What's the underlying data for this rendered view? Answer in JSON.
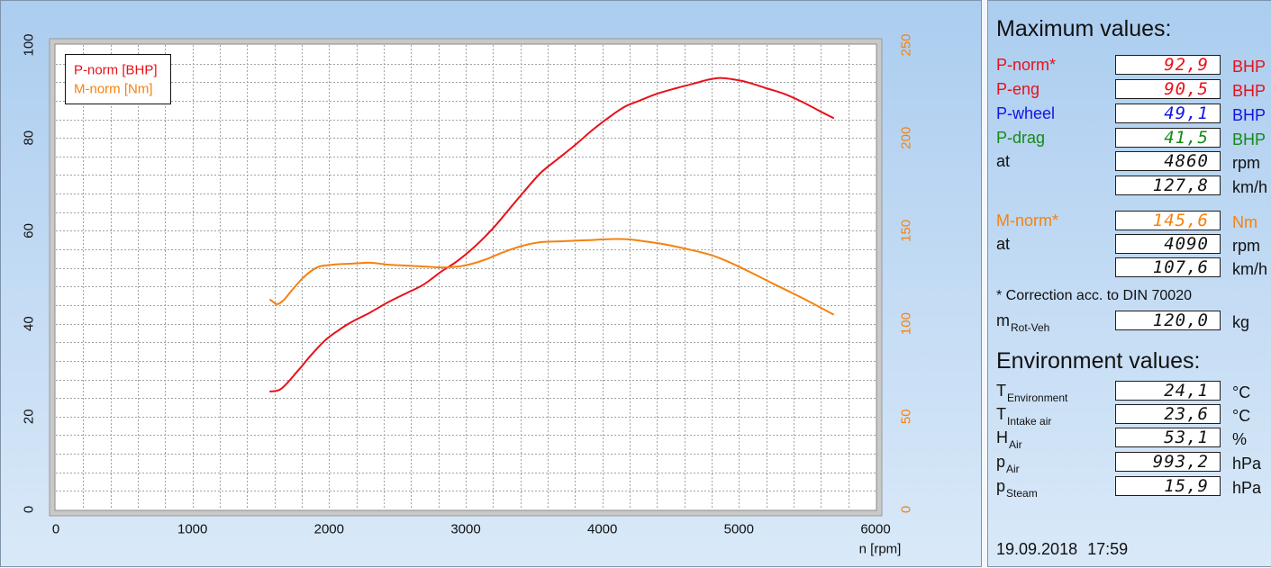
{
  "chart_data": {
    "type": "line",
    "x_axis": {
      "label": "n [rpm]",
      "lim": [
        0,
        6000
      ],
      "ticks": [
        0,
        1000,
        2000,
        3000,
        4000,
        5000,
        6000
      ]
    },
    "y_axis_left": {
      "lim": [
        0,
        100
      ],
      "ticks": [
        0,
        20,
        40,
        60,
        80,
        100
      ]
    },
    "y_axis_right": {
      "lim": [
        0,
        250
      ],
      "ticks": [
        0,
        50,
        100,
        150,
        200,
        250
      ],
      "color": "#f5820f"
    },
    "grid": true,
    "legend_position": "top-left",
    "series": [
      {
        "name": "P-norm [BHP]",
        "axis": "left",
        "color": "#e8101a",
        "x": [
          1570,
          1650,
          1770,
          1870,
          1970,
          2060,
          2160,
          2300,
          2430,
          2560,
          2690,
          2820,
          2920,
          3020,
          3120,
          3220,
          3320,
          3420,
          3550,
          3680,
          3810,
          3940,
          4080,
          4170,
          4270,
          4400,
          4540,
          4670,
          4770,
          4860,
          4960,
          5060,
          5200,
          5330,
          5460,
          5590,
          5690
        ],
        "y": [
          25.4,
          26.0,
          29.8,
          33.3,
          36.4,
          38.4,
          40.3,
          42.4,
          44.6,
          46.5,
          48.4,
          51.2,
          53.1,
          55.4,
          58.1,
          61.2,
          64.7,
          68.2,
          72.5,
          75.6,
          78.7,
          82.0,
          85.1,
          86.8,
          88.0,
          89.5,
          90.7,
          91.7,
          92.5,
          92.9,
          92.6,
          92.0,
          90.7,
          89.5,
          87.8,
          85.8,
          84.3
        ]
      },
      {
        "name": "M-norm [Nm]",
        "axis": "right",
        "color": "#f5820f",
        "x": [
          1570,
          1620,
          1670,
          1730,
          1800,
          1870,
          1930,
          2030,
          2160,
          2300,
          2430,
          2560,
          2690,
          2820,
          2950,
          3050,
          3150,
          3280,
          3420,
          3550,
          3710,
          3880,
          4090,
          4210,
          4340,
          4470,
          4600,
          4770,
          4870,
          5000,
          5130,
          5260,
          5390,
          5520,
          5690
        ],
        "y": [
          112.9,
          110.5,
          112.9,
          118.2,
          124.0,
          128.4,
          130.8,
          131.8,
          132.3,
          132.8,
          131.8,
          131.3,
          130.8,
          130.3,
          130.8,
          132.3,
          134.7,
          138.6,
          142.0,
          143.9,
          144.4,
          144.9,
          145.6,
          145.3,
          144.0,
          142.5,
          140.5,
          137.5,
          135.0,
          130.7,
          126.0,
          121.2,
          116.5,
          111.7,
          105.0
        ]
      }
    ]
  },
  "max_values": {
    "title": "Maximum values:",
    "p_norm": {
      "label": "P-norm*",
      "value": "92,9",
      "unit": "BHP",
      "color": "#e8101a"
    },
    "p_eng": {
      "label": "P-eng",
      "value": "90,5",
      "unit": "BHP",
      "color": "#e8101a"
    },
    "p_wheel": {
      "label": "P-wheel",
      "value": "49,1",
      "unit": "BHP",
      "color": "#1414e6"
    },
    "p_drag": {
      "label": "P-drag",
      "value": "41,5",
      "unit": "BHP",
      "color": "#168a16"
    },
    "at_rpm": {
      "label": "at",
      "value": "4860",
      "unit": "rpm"
    },
    "at_speed": {
      "value": "127,8",
      "unit": "km/h"
    },
    "m_norm": {
      "label": "M-norm*",
      "value": "145,6",
      "unit": "Nm",
      "color": "#f5820f"
    },
    "m_at_rpm": {
      "label": "at",
      "value": "4090",
      "unit": "rpm"
    },
    "m_at_speed": {
      "value": "107,6",
      "unit": "km/h"
    },
    "correction_note": "* Correction acc. to DIN 70020",
    "m_rot_veh": {
      "label_main": "m",
      "label_sub": "Rot-Veh",
      "value": "120,0",
      "unit": "kg"
    }
  },
  "environment": {
    "title": "Environment values:",
    "t_env": {
      "label_main": "T",
      "label_sub": "Environment",
      "value": "24,1",
      "unit": "°C"
    },
    "t_intake": {
      "label_main": "T",
      "label_sub": "Intake air",
      "value": "23,6",
      "unit": "°C"
    },
    "h_air": {
      "label_main": "H",
      "label_sub": "Air",
      "value": "53,1",
      "unit": "%"
    },
    "p_air": {
      "label_main": "p",
      "label_sub": "Air",
      "value": "993,2",
      "unit": "hPa"
    },
    "p_steam": {
      "label_main": "p",
      "label_sub": "Steam",
      "value": "15,9",
      "unit": "hPa"
    }
  },
  "timestamp": {
    "date": "19.09.2018",
    "time": "17:59"
  }
}
